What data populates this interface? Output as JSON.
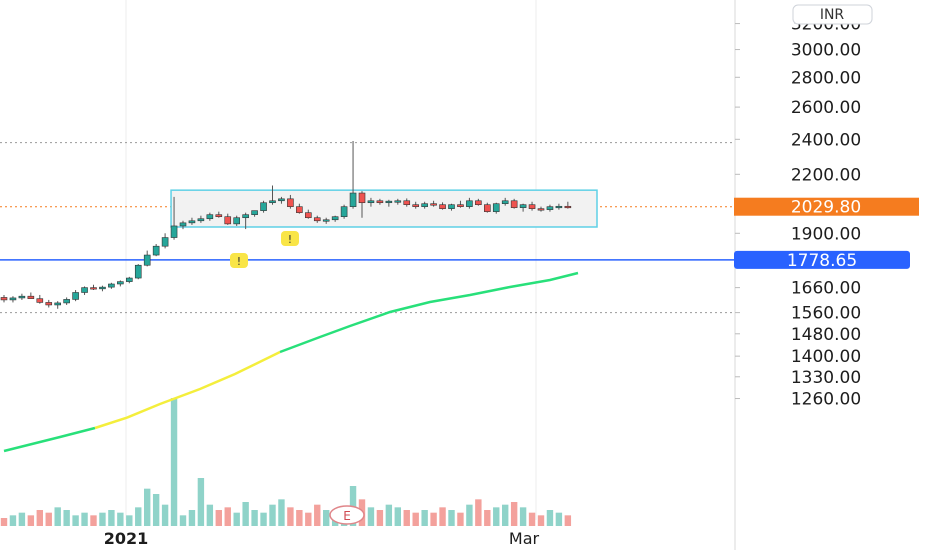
{
  "currency": "INR",
  "colors": {
    "up": "#26a69a",
    "down": "#ef5350",
    "vol_up": "#8fd3c9",
    "vol_down": "#f3a19c",
    "price_tag": "#f57c1f",
    "support_line": "#2962ff",
    "ma_green": "#28e07a",
    "ma_yellow": "#f4ee3c",
    "box_border": "#5fd0e6",
    "box_fill": "#f2f2f2",
    "marker": "#f9e547"
  },
  "chart_data": {
    "type": "candlestick",
    "y_scale": "log",
    "y_ticks": [
      "3200.00",
      "3000.00",
      "2800.00",
      "2600.00",
      "2400.00",
      "2200.00",
      "1900.00",
      "1660.00",
      "1560.00",
      "1480.00",
      "1400.00",
      "1330.00",
      "1260.00"
    ],
    "y_tick_values": [
      3200,
      3000,
      2800,
      2600,
      2400,
      2200,
      1900,
      1660,
      1560,
      1480,
      1400,
      1330,
      1260
    ],
    "x_labels": [
      "2021",
      "Mar"
    ],
    "last_price": "2029.80",
    "support_level": "1778.65",
    "support_value": 1778.65,
    "last_price_value": 2029.8,
    "resistance_dotted": 2380,
    "lower_dotted": 1560,
    "box": {
      "low": 1930,
      "high": 2115
    },
    "earnings_marker": "E",
    "flag_markers": [
      "!",
      "!"
    ],
    "candles": [
      [
        1620,
        1630,
        1600,
        1610
      ],
      [
        1610,
        1625,
        1600,
        1618
      ],
      [
        1618,
        1635,
        1610,
        1625
      ],
      [
        1625,
        1640,
        1620,
        1615
      ],
      [
        1615,
        1630,
        1595,
        1600
      ],
      [
        1600,
        1610,
        1580,
        1590
      ],
      [
        1590,
        1605,
        1575,
        1598
      ],
      [
        1598,
        1620,
        1590,
        1612
      ],
      [
        1612,
        1650,
        1605,
        1640
      ],
      [
        1640,
        1665,
        1630,
        1660
      ],
      [
        1660,
        1672,
        1650,
        1655
      ],
      [
        1655,
        1668,
        1645,
        1662
      ],
      [
        1662,
        1680,
        1655,
        1675
      ],
      [
        1675,
        1690,
        1665,
        1685
      ],
      [
        1685,
        1705,
        1678,
        1700
      ],
      [
        1700,
        1760,
        1695,
        1755
      ],
      [
        1755,
        1820,
        1750,
        1800
      ],
      [
        1800,
        1850,
        1795,
        1840
      ],
      [
        1840,
        1900,
        1830,
        1880
      ],
      [
        1880,
        2080,
        1870,
        1935
      ],
      [
        1935,
        1960,
        1920,
        1950
      ],
      [
        1950,
        1975,
        1940,
        1960
      ],
      [
        1960,
        1985,
        1950,
        1970
      ],
      [
        1970,
        2000,
        1960,
        1990
      ],
      [
        1990,
        2005,
        1975,
        1980
      ],
      [
        1980,
        1995,
        1940,
        1945
      ],
      [
        1945,
        1985,
        1935,
        1975
      ],
      [
        1975,
        2000,
        1920,
        1990
      ],
      [
        1990,
        2010,
        1980,
        2010
      ],
      [
        2010,
        2060,
        2000,
        2050
      ],
      [
        2050,
        2140,
        2040,
        2060
      ],
      [
        2060,
        2080,
        2045,
        2070
      ],
      [
        2070,
        2090,
        2020,
        2030
      ],
      [
        2030,
        2045,
        1995,
        2000
      ],
      [
        2000,
        2015,
        1970,
        1975
      ],
      [
        1975,
        1985,
        1950,
        1960
      ],
      [
        1960,
        1975,
        1945,
        1965
      ],
      [
        1965,
        1985,
        1955,
        1980
      ],
      [
        1980,
        2040,
        1970,
        2030
      ],
      [
        2030,
        2390,
        2020,
        2100
      ],
      [
        2100,
        2110,
        1975,
        2050
      ],
      [
        2050,
        2075,
        2030,
        2060
      ],
      [
        2060,
        2070,
        2040,
        2050
      ],
      [
        2050,
        2065,
        2030,
        2058
      ],
      [
        2058,
        2070,
        2040,
        2060
      ],
      [
        2060,
        2072,
        2030,
        2040
      ],
      [
        2040,
        2055,
        2020,
        2030
      ],
      [
        2030,
        2055,
        2020,
        2045
      ],
      [
        2045,
        2060,
        2030,
        2040
      ],
      [
        2040,
        2052,
        2015,
        2020
      ],
      [
        2020,
        2045,
        2010,
        2040
      ],
      [
        2040,
        2060,
        2025,
        2030
      ],
      [
        2030,
        2075,
        2020,
        2060
      ],
      [
        2060,
        2070,
        2035,
        2040
      ],
      [
        2040,
        2050,
        2000,
        2005
      ],
      [
        2005,
        2050,
        1995,
        2045
      ],
      [
        2045,
        2075,
        2035,
        2060
      ],
      [
        2060,
        2070,
        2020,
        2025
      ],
      [
        2025,
        2045,
        2005,
        2040
      ],
      [
        2040,
        2055,
        2010,
        2020
      ],
      [
        2020,
        2030,
        2005,
        2015
      ],
      [
        2015,
        2040,
        2005,
        2030
      ],
      [
        2030,
        2045,
        2015,
        2032
      ],
      [
        2032,
        2055,
        2020,
        2030
      ]
    ],
    "volumes": [
      3,
      4,
      5,
      4,
      6,
      5,
      7,
      6,
      4,
      5,
      4,
      5,
      6,
      5,
      4,
      7,
      14,
      12,
      8,
      48,
      4,
      6,
      18,
      8,
      6,
      7,
      5,
      9,
      6,
      5,
      8,
      10,
      7,
      6,
      5,
      8,
      6,
      5,
      7,
      15,
      10,
      7,
      6,
      8,
      7,
      6,
      5,
      6,
      5,
      7,
      6,
      5,
      8,
      10,
      6,
      7,
      8,
      9,
      7,
      5,
      4,
      6,
      5,
      4
    ]
  }
}
